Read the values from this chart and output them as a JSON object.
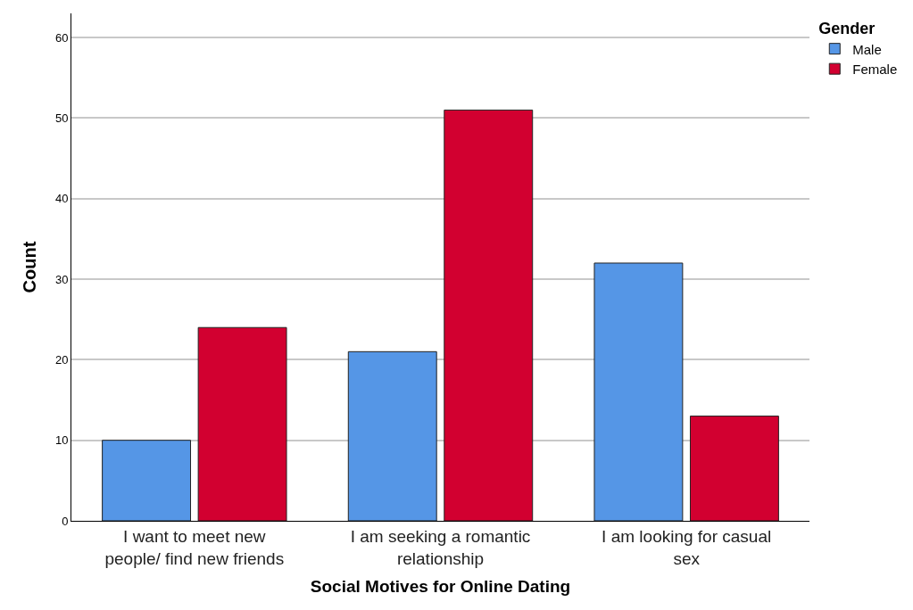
{
  "chart_data": {
    "type": "bar",
    "xlabel": "Social Motives for Online Dating",
    "ylabel": "Count",
    "legend_title": "Gender",
    "categories": [
      "I want to meet new\npeople/ find new friends",
      "I am seeking a romantic\nrelationship",
      "I am looking for casual\nsex"
    ],
    "series": [
      {
        "name": "Male",
        "color": "#5596e6",
        "values": [
          10,
          21,
          32
        ]
      },
      {
        "name": "Female",
        "color": "#d20030",
        "values": [
          24,
          51,
          13
        ]
      }
    ],
    "ylim": [
      0,
      63
    ],
    "yticks": [
      0,
      10,
      20,
      30,
      40,
      50,
      60
    ],
    "grid": "y",
    "legend": "top right"
  }
}
